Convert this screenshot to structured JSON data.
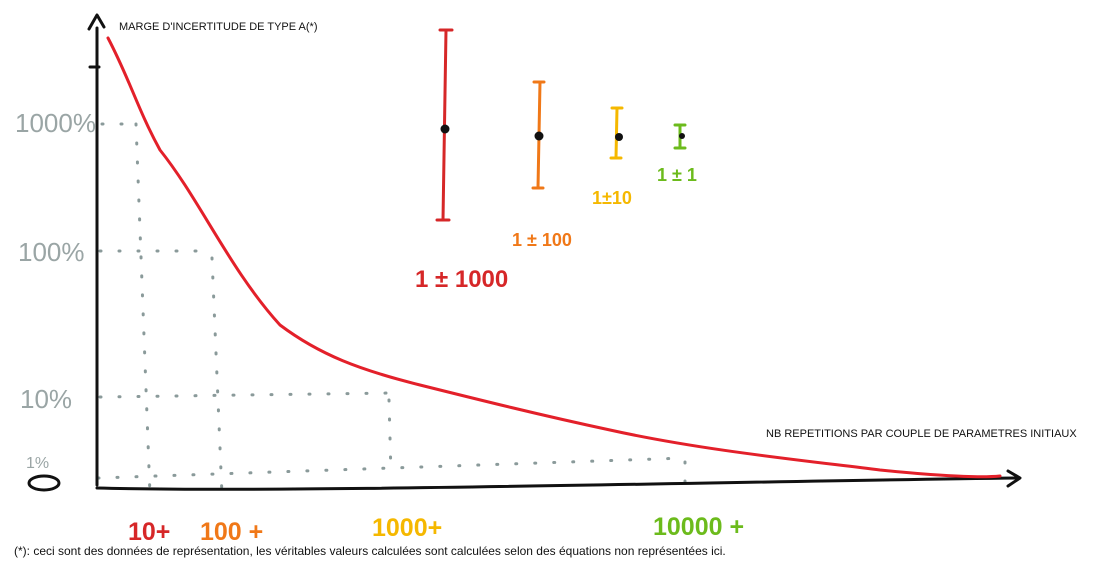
{
  "y_axis_label": "MARGE D'INCERTITUDE DE TYPE A(*)",
  "x_axis_label": "NB REPETITIONS PAR COUPLE DE PARAMETRES INITIAUX",
  "y_ticks": [
    "1000%",
    "100%",
    "10%",
    "1%",
    "0"
  ],
  "x_ticks": [
    {
      "label": "10+",
      "color": "#d62728"
    },
    {
      "label": "100 +",
      "color": "#f07818"
    },
    {
      "label": "1000+",
      "color": "#f5b800"
    },
    {
      "label": "10000 +",
      "color": "#6cbb1c"
    }
  ],
  "error_bars": [
    {
      "label": "1 ± 1000",
      "color": "#d62728"
    },
    {
      "label": "1 ± 100",
      "color": "#f07818"
    },
    {
      "label": "1±10",
      "color": "#f5b800"
    },
    {
      "label": "1 ± 1",
      "color": "#6cbb1c"
    }
  ],
  "footnote": "(*): ceci sont des données de représentation, les véritables valeurs calculées sont calculées selon des équations non représentées ici.",
  "colors": {
    "curve": "#e3202a",
    "axis": "#111111",
    "guide": "#8a9a9a",
    "tick_gray": "#9aa5a5"
  }
}
